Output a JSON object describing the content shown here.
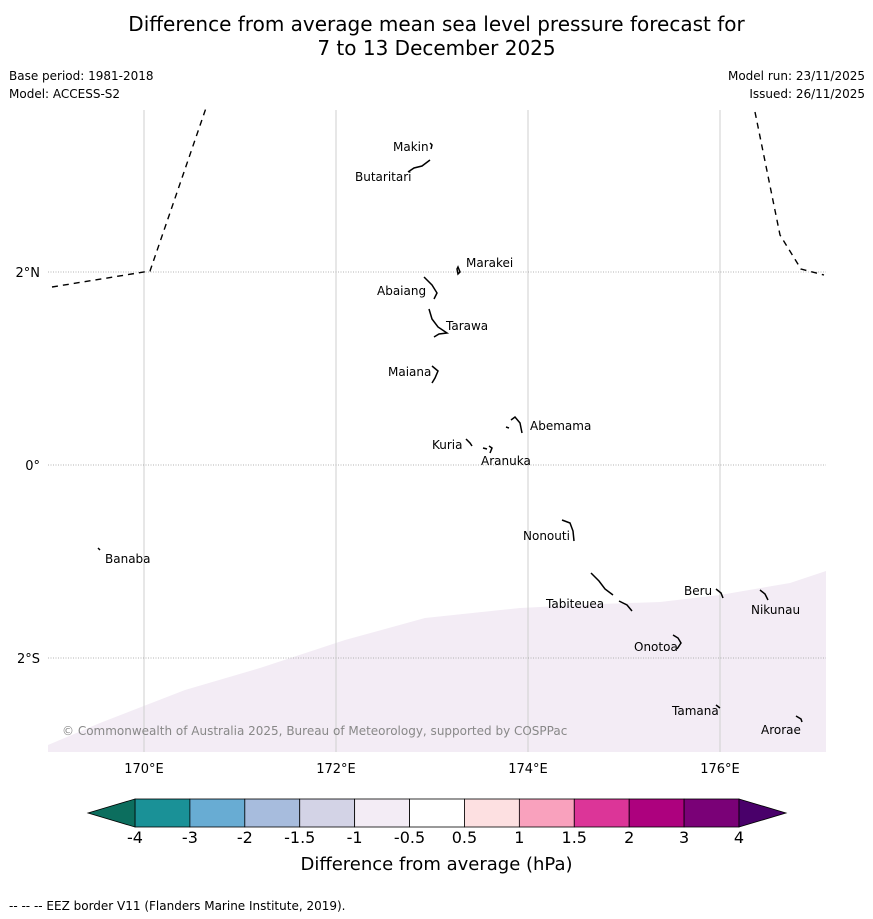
{
  "header": {
    "title_line1": "Difference from average mean sea level pressure forecast for",
    "title_line2": "7 to 13 December 2025",
    "base_period": "Base period: 1981-2018",
    "model": "Model: ACCESS-S2",
    "model_run": "Model run: 23/11/2025",
    "issued": "Issued: 26/11/2025"
  },
  "map": {
    "lon_range": [
      169,
      177.1
    ],
    "lat_range": [
      -3,
      3.8
    ],
    "lon_ticks": [
      {
        "value": 170,
        "label": "170°E"
      },
      {
        "value": 172,
        "label": "172°E"
      },
      {
        "value": 174,
        "label": "174°E"
      },
      {
        "value": 176,
        "label": "176°E"
      }
    ],
    "lat_ticks": [
      {
        "value": 2,
        "label": "2°N"
      },
      {
        "value": 0,
        "label": "0°"
      },
      {
        "value": -2,
        "label": "2°S"
      }
    ],
    "shaded_anomaly": {
      "range_hPa": "-1 to -0.5",
      "color": "#f3ecf5"
    },
    "islands": [
      {
        "name": "Makin",
        "lon": 172.9,
        "lat": 3.3
      },
      {
        "name": "Butaritari",
        "lon": 172.85,
        "lat": 3.1
      },
      {
        "name": "Marakei",
        "lon": 173.3,
        "lat": 2.0
      },
      {
        "name": "Abaiang",
        "lon": 173.0,
        "lat": 1.85
      },
      {
        "name": "Tarawa",
        "lon": 173.05,
        "lat": 1.45
      },
      {
        "name": "Maiana",
        "lon": 173.0,
        "lat": 0.95
      },
      {
        "name": "Abemama",
        "lon": 173.9,
        "lat": 0.4
      },
      {
        "name": "Kuria",
        "lon": 173.4,
        "lat": 0.22
      },
      {
        "name": "Aranuka",
        "lon": 173.6,
        "lat": 0.17
      },
      {
        "name": "Nonouti",
        "lon": 174.4,
        "lat": -0.65
      },
      {
        "name": "Banaba",
        "lon": 169.55,
        "lat": -0.87
      },
      {
        "name": "Tabiteuea",
        "lon": 174.9,
        "lat": -1.35
      },
      {
        "name": "Beru",
        "lon": 176.0,
        "lat": -1.3
      },
      {
        "name": "Nikunau",
        "lon": 176.45,
        "lat": -1.35
      },
      {
        "name": "Onotoa",
        "lon": 175.55,
        "lat": -1.82
      },
      {
        "name": "Tamana",
        "lon": 175.98,
        "lat": -2.5
      },
      {
        "name": "Arorae",
        "lon": 176.82,
        "lat": -2.65
      }
    ],
    "copyright": "© Commonwealth of Australia 2025, Bureau of Meteorology, supported by COSPPac"
  },
  "colorbar": {
    "ticks": [
      "-4",
      "-3",
      "-2",
      "-1.5",
      "-1",
      "-0.5",
      "0.5",
      "1",
      "1.5",
      "2",
      "3",
      "4"
    ],
    "colors": [
      "#1a9197",
      "#68acd3",
      "#a7bcdd",
      "#d3d3e6",
      "#f3ecf5",
      "#ffffff",
      "#fde0e1",
      "#f9a1bd",
      "#dc3598",
      "#ad017e",
      "#7a0177"
    ],
    "under_color": "#0c6e5e",
    "over_color": "#49006a",
    "title": "Difference from average (hPa)"
  },
  "footer": {
    "legend_text": "--  --  -- EEZ border V11 (Flanders Marine Institute, 2019)."
  }
}
